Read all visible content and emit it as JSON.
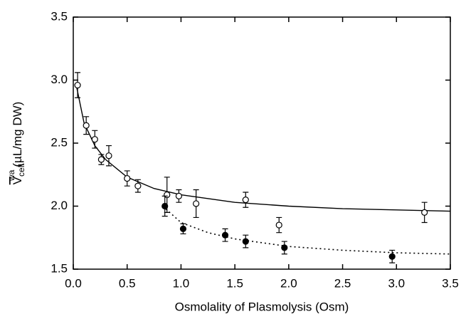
{
  "chart_data": {
    "type": "scatter",
    "xlabel": "Osmolality of Plasmolysis (Osm)",
    "ylabel": {
      "symbol": "V",
      "subscript": "cell",
      "superscript": "wa",
      "unit": "(µL/mg DW)"
    },
    "xlim": [
      0,
      3.5
    ],
    "ylim": [
      1.5,
      3.5
    ],
    "xticks": [
      {
        "value": 0,
        "label": "0.0"
      },
      0.5,
      {
        "value": 1,
        "label": "1.0"
      },
      1.5,
      {
        "value": 2,
        "label": "2.0"
      },
      2.5,
      {
        "value": 3,
        "label": "3.0"
      },
      3.5
    ],
    "yticks": [
      1.5,
      {
        "value": 2,
        "label": "2.0"
      },
      2.5,
      {
        "value": 3,
        "label": "3.0"
      },
      3.5
    ],
    "series": [
      {
        "marker": "open",
        "color": "#000000",
        "x": [
          0.04,
          0.12,
          0.2,
          0.26,
          0.33,
          0.5,
          0.6,
          0.87,
          0.98,
          1.14,
          1.6,
          1.91,
          3.26
        ],
        "values": [
          2.96,
          2.64,
          2.53,
          2.37,
          2.4,
          2.22,
          2.16,
          2.09,
          2.08,
          2.02,
          2.05,
          1.85,
          1.95
        ],
        "errors": [
          0.1,
          0.07,
          0.07,
          0.04,
          0.08,
          0.06,
          0.05,
          0.14,
          0.05,
          0.11,
          0.06,
          0.06,
          0.08
        ]
      },
      {
        "marker": "filled",
        "color": "#000000",
        "x": [
          0.85,
          1.02,
          1.41,
          1.6,
          1.96,
          2.96
        ],
        "values": [
          2.0,
          1.82,
          1.77,
          1.72,
          1.67,
          1.6
        ],
        "errors": [
          0.08,
          0.04,
          0.05,
          0.05,
          0.05,
          0.05
        ]
      }
    ],
    "curves": [
      {
        "style": "solid",
        "color": "#000000",
        "x": [
          0.03,
          0.1,
          0.2,
          0.3,
          0.5,
          0.75,
          1,
          1.5,
          2,
          2.5,
          3,
          3.5
        ],
        "values": [
          2.95,
          2.66,
          2.48,
          2.37,
          2.23,
          2.14,
          2.09,
          2.03,
          2.0,
          1.98,
          1.97,
          1.96
        ]
      },
      {
        "style": "dotted",
        "color": "#000000",
        "x": [
          0.83,
          1,
          1.25,
          1.5,
          2,
          2.5,
          3,
          3.5
        ],
        "values": [
          2.0,
          1.87,
          1.79,
          1.74,
          1.68,
          1.65,
          1.63,
          1.62
        ]
      }
    ]
  }
}
